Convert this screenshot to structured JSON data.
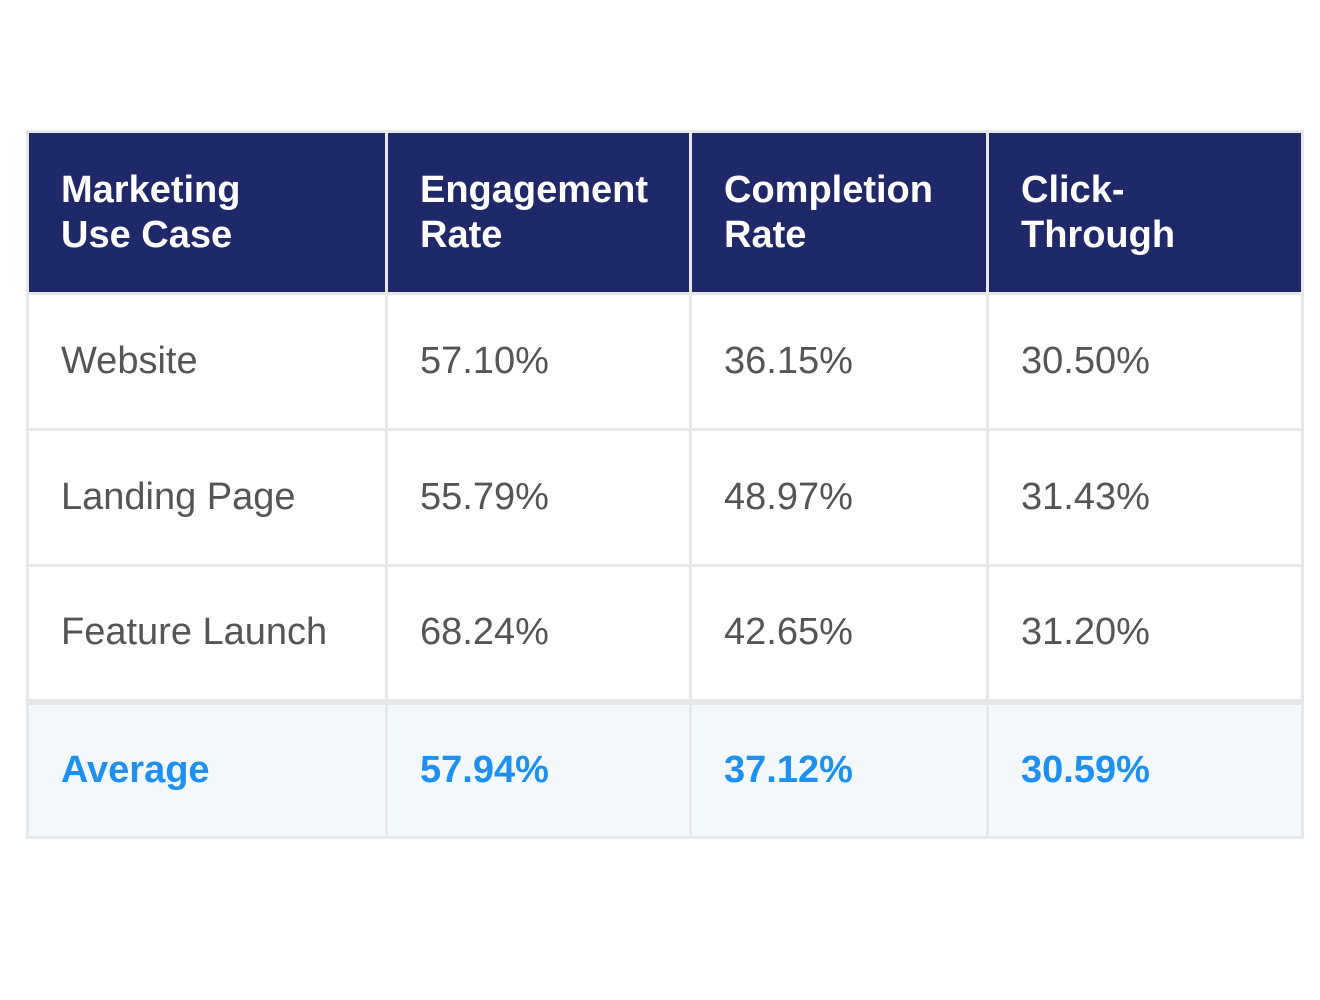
{
  "table": {
    "headers": [
      {
        "line1": "Marketing",
        "line2": "Use Case"
      },
      {
        "line1": "Engagement",
        "line2": "Rate"
      },
      {
        "line1": "Completion",
        "line2": "Rate"
      },
      {
        "line1": "Click-",
        "line2": "Through"
      }
    ],
    "rows": [
      {
        "use_case": "Website",
        "engagement": "57.10%",
        "completion": "36.15%",
        "click_through": "30.50%"
      },
      {
        "use_case": "Landing Page",
        "engagement": "55.79%",
        "completion": "48.97%",
        "click_through": "31.43%"
      },
      {
        "use_case": "Feature Launch",
        "engagement": "68.24%",
        "completion": "42.65%",
        "click_through": "31.20%"
      }
    ],
    "average": {
      "use_case": "Average",
      "engagement": "57.94%",
      "completion": "37.12%",
      "click_through": "30.59%"
    }
  },
  "colors": {
    "header_bg": "#1f2869",
    "header_text": "#ffffff",
    "body_text": "#555555",
    "average_text": "#1e90f0",
    "average_bg": "#f3f8fd",
    "border": "#e6e7ea"
  }
}
